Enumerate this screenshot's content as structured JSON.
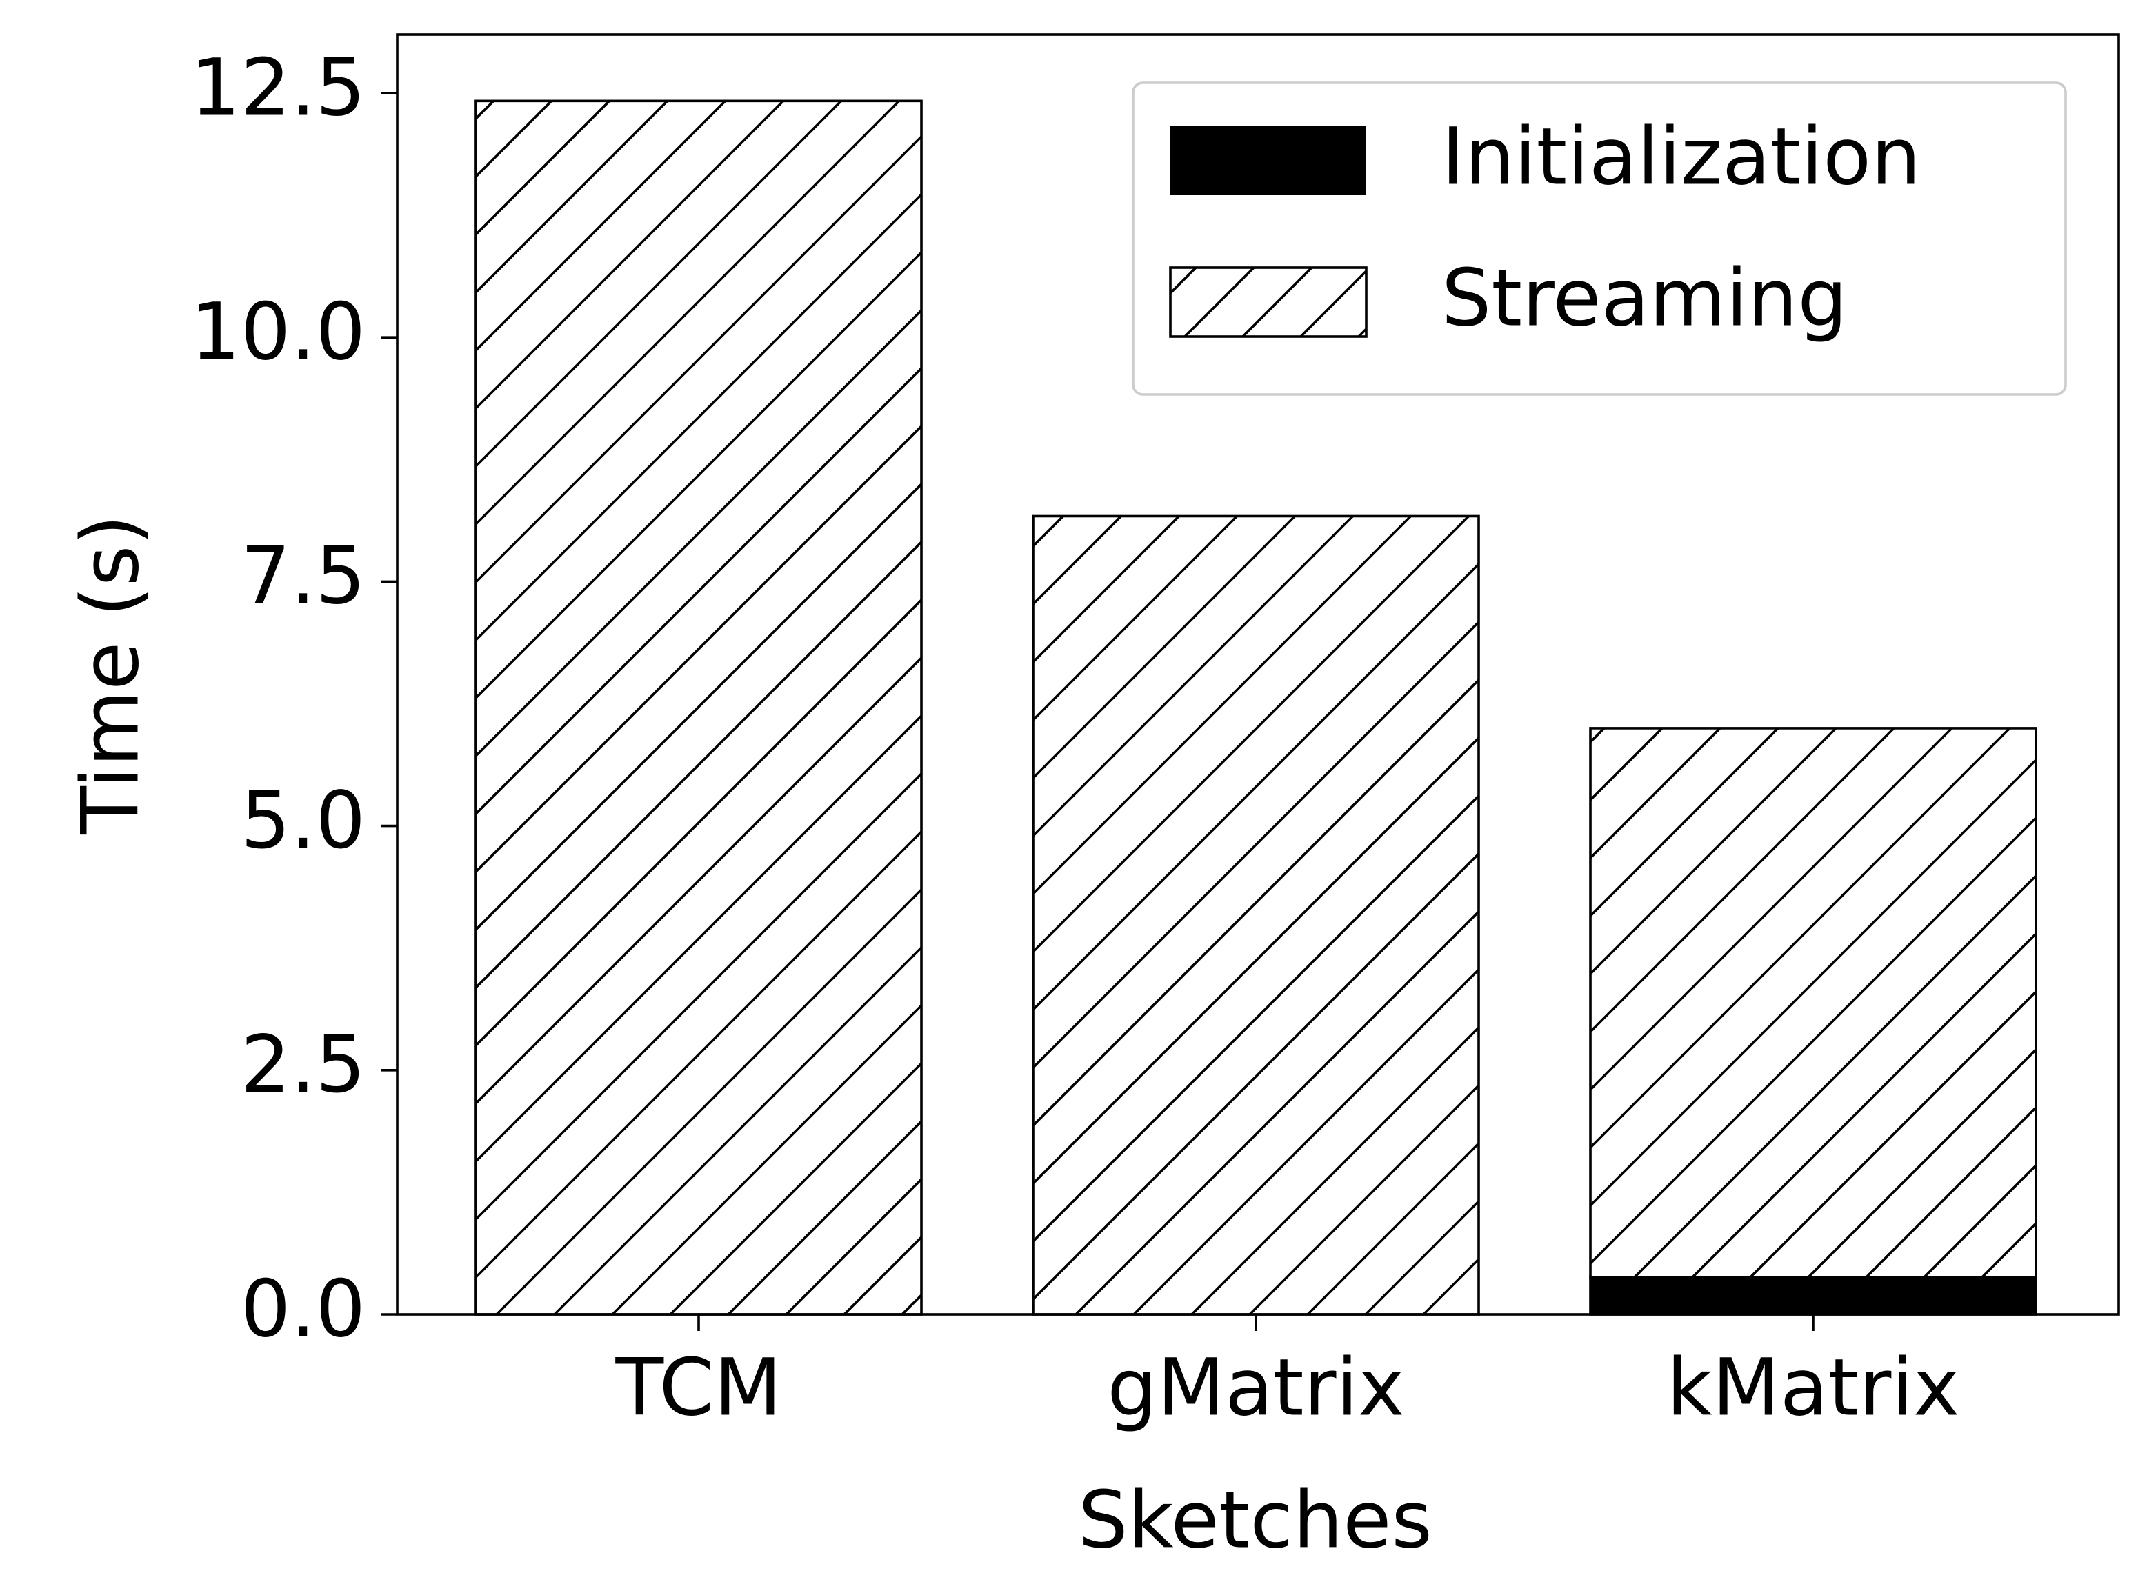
{
  "chart_data": {
    "type": "bar",
    "stacked": true,
    "title": "",
    "xlabel": "Sketches",
    "ylabel": "Time (s)",
    "categories": [
      "TCM",
      "gMatrix",
      "kMatrix"
    ],
    "series": [
      {
        "name": "Initialization",
        "values": [
          0.0,
          0.0,
          0.38
        ],
        "fill": "#000000",
        "pattern": "solid"
      },
      {
        "name": "Streaming",
        "values": [
          12.42,
          8.17,
          5.62
        ],
        "fill": "#ffffff",
        "pattern": "diagonal-hatch"
      }
    ],
    "ylim": [
      0,
      13.1
    ],
    "yticks": [
      "0.0",
      "2.5",
      "5.0",
      "7.5",
      "10.0",
      "12.5"
    ],
    "grid": false,
    "legend_position": "top-right"
  }
}
